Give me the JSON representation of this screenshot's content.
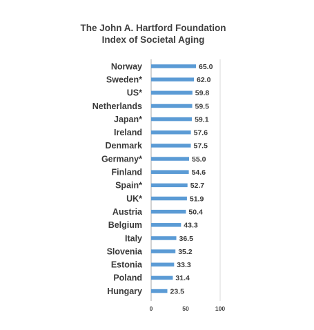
{
  "chart_data": {
    "type": "bar",
    "orientation": "horizontal",
    "title": "The John A. Hartford Foundation",
    "subtitle": "Index of Societal Aging",
    "categories": [
      "Norway",
      "Sweden*",
      "US*",
      "Netherlands",
      "Japan*",
      "Ireland",
      "Denmark",
      "Germany*",
      "Finland",
      "Spain*",
      "UK*",
      "Austria",
      "Belgium",
      "Italy",
      "Slovenia",
      "Estonia",
      "Poland",
      "Hungary"
    ],
    "values": [
      65.0,
      62.0,
      59.8,
      59.5,
      59.1,
      57.6,
      57.5,
      55.0,
      54.6,
      52.7,
      51.9,
      50.4,
      43.3,
      36.5,
      35.2,
      33.3,
      31.4,
      23.5
    ],
    "data_labels": [
      "65.0",
      "62.0",
      "59.8",
      "59.5",
      "59.1",
      "57.6",
      "57.5",
      "55.0",
      "54.6",
      "52.7",
      "51.9",
      "50.4",
      "43.3",
      "36.5",
      "35.2",
      "33.3",
      "31.4",
      "23.5"
    ],
    "xlim": [
      0,
      100
    ],
    "x_ticks": [
      "0",
      "50",
      "100"
    ],
    "xlabel": "",
    "ylabel": "",
    "grid": false,
    "legend": "none",
    "colors": {
      "bar": "#5b9bd5",
      "text": "#3a3a3a",
      "axis": "#d9d9d9"
    }
  }
}
